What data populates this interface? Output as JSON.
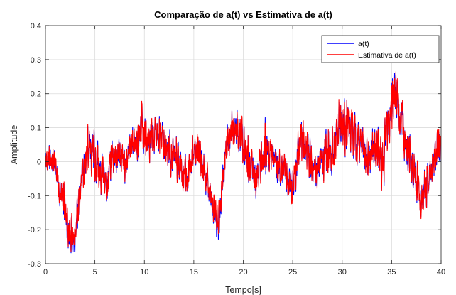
{
  "chart_data": {
    "type": "line",
    "title": "Comparação de a(t) vs Estimativa de a(t)",
    "xlabel": "Tempo[s]",
    "ylabel": "Amplitude",
    "xlim": [
      0,
      40
    ],
    "ylim": [
      -0.3,
      0.4
    ],
    "x_ticks": [
      0,
      5,
      10,
      15,
      20,
      25,
      30,
      35,
      40
    ],
    "x_tick_labels": [
      "0",
      "5",
      "10",
      "15",
      "20",
      "25",
      "30",
      "35",
      "40"
    ],
    "y_ticks": [
      -0.3,
      -0.2,
      -0.1,
      0,
      0.1,
      0.2,
      0.3,
      0.4
    ],
    "y_tick_labels": [
      "-0.3",
      "-0.2",
      "-0.1",
      "0",
      "0.1",
      "0.2",
      "0.3",
      "0.4"
    ],
    "grid": true,
    "legend_position": "top-right",
    "envelope_x": [
      0,
      0.5,
      1,
      1.5,
      2,
      2.5,
      3,
      3.5,
      4,
      4.5,
      5,
      5.5,
      6,
      6.5,
      7,
      7.5,
      8,
      8.5,
      9,
      9.5,
      10,
      10.5,
      11,
      11.5,
      12,
      12.5,
      13,
      13.5,
      14,
      14.5,
      15,
      15.5,
      16,
      16.5,
      17,
      17.5,
      18,
      18.5,
      19,
      19.5,
      20,
      20.5,
      21,
      21.5,
      22,
      22.5,
      23,
      23.5,
      24,
      24.5,
      25,
      25.5,
      26,
      26.5,
      27,
      27.5,
      28,
      28.5,
      29,
      29.5,
      30,
      30.5,
      31,
      31.5,
      32,
      32.5,
      33,
      33.5,
      34,
      34.5,
      35,
      35.5,
      36,
      36.5,
      37,
      37.5,
      38,
      38.5,
      39,
      39.5,
      40
    ],
    "series": [
      {
        "name": "a(t)",
        "color": "#0000ff",
        "center": [
          0.0,
          0.01,
          0.0,
          -0.07,
          -0.14,
          -0.22,
          -0.21,
          -0.1,
          0.0,
          0.05,
          0.02,
          -0.02,
          -0.06,
          -0.03,
          0.02,
          0.03,
          -0.02,
          0.04,
          0.05,
          0.07,
          0.11,
          0.1,
          0.06,
          0.06,
          0.05,
          0.02,
          0.02,
          0.0,
          -0.05,
          -0.03,
          0.04,
          0.03,
          -0.03,
          -0.06,
          -0.15,
          -0.2,
          -0.03,
          0.08,
          0.09,
          0.1,
          0.04,
          0.0,
          -0.05,
          -0.04,
          0.04,
          0.04,
          0.02,
          -0.02,
          -0.02,
          -0.06,
          -0.08,
          0.02,
          0.07,
          0.03,
          -0.02,
          -0.03,
          0.0,
          0.02,
          0.04,
          0.08,
          0.12,
          0.1,
          0.08,
          0.06,
          0.04,
          0.02,
          0.03,
          0.03,
          -0.02,
          0.08,
          0.17,
          0.2,
          0.12,
          0.05,
          0.0,
          -0.06,
          -0.12,
          -0.08,
          -0.03,
          0.04,
          0.05
        ],
        "spread": [
          0.04,
          0.05,
          0.06,
          0.06,
          0.07,
          0.07,
          0.06,
          0.06,
          0.07,
          0.08,
          0.08,
          0.06,
          0.05,
          0.07,
          0.05,
          0.05,
          0.05,
          0.06,
          0.05,
          0.07,
          0.09,
          0.09,
          0.06,
          0.07,
          0.06,
          0.06,
          0.06,
          0.06,
          0.06,
          0.06,
          0.06,
          0.06,
          0.05,
          0.05,
          0.05,
          0.07,
          0.05,
          0.07,
          0.07,
          0.07,
          0.07,
          0.07,
          0.06,
          0.06,
          0.08,
          0.08,
          0.06,
          0.06,
          0.06,
          0.06,
          0.06,
          0.07,
          0.07,
          0.07,
          0.06,
          0.06,
          0.06,
          0.07,
          0.08,
          0.08,
          0.09,
          0.09,
          0.08,
          0.08,
          0.07,
          0.07,
          0.06,
          0.07,
          0.08,
          0.08,
          0.09,
          0.09,
          0.08,
          0.07,
          0.06,
          0.07,
          0.07,
          0.07,
          0.06,
          0.06,
          0.05
        ]
      },
      {
        "name": "Estimativa de a(t)",
        "color": "#ff0000",
        "center": [
          0.0,
          0.01,
          0.0,
          -0.07,
          -0.14,
          -0.21,
          -0.2,
          -0.1,
          0.0,
          0.05,
          0.02,
          -0.02,
          -0.06,
          -0.03,
          0.02,
          0.03,
          -0.02,
          0.04,
          0.05,
          0.07,
          0.11,
          0.1,
          0.06,
          0.06,
          0.05,
          0.02,
          0.02,
          0.0,
          -0.05,
          -0.03,
          0.04,
          0.03,
          -0.03,
          -0.06,
          -0.14,
          -0.19,
          -0.03,
          0.08,
          0.09,
          0.1,
          0.04,
          0.0,
          -0.05,
          -0.04,
          0.04,
          0.04,
          0.02,
          -0.02,
          -0.02,
          -0.06,
          -0.08,
          0.02,
          0.07,
          0.03,
          -0.02,
          -0.03,
          0.0,
          0.02,
          0.04,
          0.08,
          0.12,
          0.1,
          0.08,
          0.06,
          0.04,
          0.02,
          0.03,
          0.03,
          -0.02,
          0.08,
          0.17,
          0.2,
          0.12,
          0.05,
          0.0,
          -0.06,
          -0.12,
          -0.08,
          -0.03,
          0.04,
          0.05
        ],
        "spread": [
          0.04,
          0.05,
          0.06,
          0.06,
          0.07,
          0.07,
          0.06,
          0.06,
          0.07,
          0.08,
          0.08,
          0.06,
          0.05,
          0.07,
          0.05,
          0.05,
          0.05,
          0.06,
          0.05,
          0.07,
          0.09,
          0.09,
          0.06,
          0.07,
          0.06,
          0.06,
          0.06,
          0.06,
          0.06,
          0.06,
          0.06,
          0.06,
          0.05,
          0.05,
          0.05,
          0.07,
          0.05,
          0.07,
          0.07,
          0.07,
          0.07,
          0.07,
          0.06,
          0.06,
          0.08,
          0.08,
          0.06,
          0.06,
          0.06,
          0.06,
          0.06,
          0.07,
          0.07,
          0.07,
          0.06,
          0.06,
          0.06,
          0.07,
          0.08,
          0.08,
          0.09,
          0.09,
          0.08,
          0.08,
          0.07,
          0.07,
          0.06,
          0.07,
          0.08,
          0.08,
          0.09,
          0.09,
          0.08,
          0.07,
          0.06,
          0.07,
          0.07,
          0.07,
          0.06,
          0.06,
          0.05
        ]
      }
    ]
  }
}
